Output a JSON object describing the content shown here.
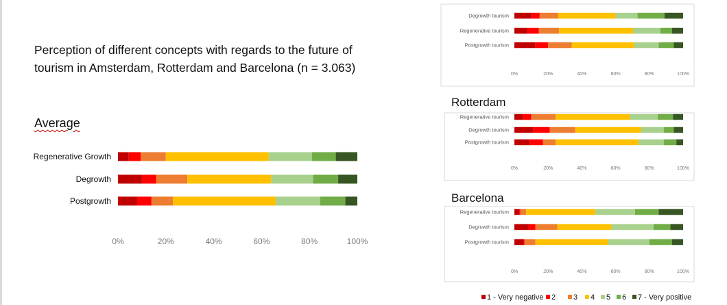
{
  "title": "Perception of different concepts with regards to the future of tourism in Amsterdam, Rotterdam and Barcelona (n = 3.063)",
  "colors": [
    "#c00000",
    "#ff0000",
    "#ed7d31",
    "#ffc000",
    "#a9d18e",
    "#70ad47",
    "#375623"
  ],
  "legend": [
    "1 - Very negative",
    "2",
    "3",
    "4",
    "5",
    "6",
    "7 - Very positive"
  ],
  "chart_data": [
    {
      "type": "bar",
      "stacked": "percent",
      "orientation": "horizontal",
      "panel": "average",
      "title": "Average",
      "categories": [
        "Regenerative Growth",
        "Degrowth",
        "Postgrowth"
      ],
      "xticks": [
        "0%",
        "20%",
        "40%",
        "60%",
        "80%",
        "100%"
      ],
      "xlim": [
        0,
        100
      ],
      "series": [
        {
          "name": "1 - Very negative",
          "values": [
            4.5,
            10,
            8
          ]
        },
        {
          "name": "2",
          "values": [
            5,
            6,
            6
          ]
        },
        {
          "name": "3",
          "values": [
            10.5,
            13,
            9
          ]
        },
        {
          "name": "4",
          "values": [
            43,
            35,
            43
          ]
        },
        {
          "name": "5",
          "values": [
            18,
            17.5,
            18.5
          ]
        },
        {
          "name": "6",
          "values": [
            10,
            10.5,
            10.5
          ]
        },
        {
          "name": "7 - Very positive",
          "values": [
            9,
            8,
            5
          ]
        }
      ]
    },
    {
      "type": "bar",
      "stacked": "percent",
      "orientation": "horizontal",
      "panel": "amsterdam",
      "title": "",
      "categories": [
        "Degrowth tourism",
        "Regenerative tourism",
        "Postgrowth tourism"
      ],
      "xticks": [
        "0%",
        "20%",
        "40%",
        "60%",
        "80%",
        "100%"
      ],
      "xlim": [
        0,
        100
      ],
      "series": [
        {
          "name": "1 - Very negative",
          "values": [
            10,
            7.5,
            12.5
          ]
        },
        {
          "name": "2",
          "values": [
            5,
            7,
            7.5
          ]
        },
        {
          "name": "3",
          "values": [
            11,
            12,
            14
          ]
        },
        {
          "name": "4",
          "values": [
            34,
            44,
            37
          ]
        },
        {
          "name": "5",
          "values": [
            13,
            16,
            14.5
          ]
        },
        {
          "name": "6",
          "values": [
            16,
            7,
            9
          ]
        },
        {
          "name": "7 - Very positive",
          "values": [
            11,
            6.5,
            5.5
          ]
        }
      ]
    },
    {
      "type": "bar",
      "stacked": "percent",
      "orientation": "horizontal",
      "panel": "rotterdam",
      "title": "Rotterdam",
      "categories": [
        "Regenerative tourism",
        "Degrowth tourism",
        "Postgrowth tourism"
      ],
      "xticks": [
        "0%",
        "20%",
        "40%",
        "60%",
        "80%",
        "100%"
      ],
      "xlim": [
        0,
        100
      ],
      "series": [
        {
          "name": "1 - Very negative",
          "values": [
            5,
            11,
            9
          ]
        },
        {
          "name": "2",
          "values": [
            5,
            10,
            8
          ]
        },
        {
          "name": "3",
          "values": [
            14.5,
            15,
            7.5
          ]
        },
        {
          "name": "4",
          "values": [
            44,
            39,
            49
          ]
        },
        {
          "name": "5",
          "values": [
            16.5,
            13.5,
            15
          ]
        },
        {
          "name": "6",
          "values": [
            9,
            6,
            7.5
          ]
        },
        {
          "name": "7 - Very positive",
          "values": [
            6,
            5.5,
            4
          ]
        }
      ]
    },
    {
      "type": "bar",
      "stacked": "percent",
      "orientation": "horizontal",
      "panel": "barcelona",
      "title": "Barcelona",
      "categories": [
        "Regenerative tourism",
        "Degrowth tourism",
        "Postgrowth tourism"
      ],
      "xticks": [
        "0%",
        "20%",
        "40%",
        "60%",
        "80%",
        "100%"
      ],
      "xlim": [
        0,
        100
      ],
      "series": [
        {
          "name": "1 - Very negative",
          "values": [
            3,
            8.5,
            5.5
          ]
        },
        {
          "name": "2",
          "values": [
            0.5,
            4,
            0.5
          ]
        },
        {
          "name": "3",
          "values": [
            3.5,
            13,
            6.5
          ]
        },
        {
          "name": "4",
          "values": [
            41,
            32,
            43
          ]
        },
        {
          "name": "5",
          "values": [
            23.5,
            25,
            24.5
          ]
        },
        {
          "name": "6",
          "values": [
            14,
            10,
            13.5
          ]
        },
        {
          "name": "7 - Very positive",
          "values": [
            14.5,
            7.5,
            6.5
          ]
        }
      ]
    }
  ]
}
